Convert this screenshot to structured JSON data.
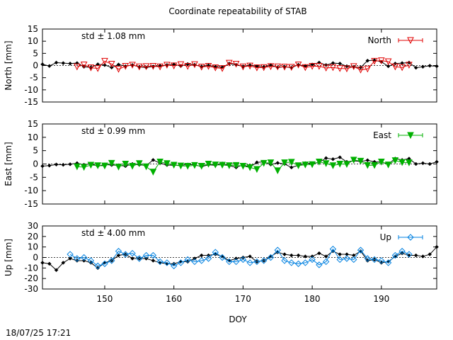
{
  "title": "Coordinate repeatability of STAB",
  "timestamp": "18/07/25 17:21",
  "colors": {
    "north": "#e00000",
    "east": "#00b000",
    "up": "#0080e0",
    "black_series": "#000000"
  },
  "chart_data": {
    "type": "line",
    "x_label": "DOY",
    "xlim": [
      141,
      198
    ],
    "x_ticks": [
      "150",
      "160",
      "170",
      "180",
      "190"
    ],
    "panels": [
      {
        "key": "north",
        "ylabel": "North [mm]",
        "ylim": [
          -15,
          15
        ],
        "y_ticks": [
          "15",
          "10",
          "5",
          "0",
          "-5",
          "-10",
          "-15"
        ],
        "std_label": "std ± 1.08 mm",
        "legend": "North",
        "marker": "triangle-down-open",
        "black_series": {
          "x": [
            141,
            142,
            143,
            144,
            145,
            146,
            147,
            148,
            149,
            150,
            151,
            152,
            153,
            154,
            155,
            156,
            157,
            158,
            159,
            160,
            161,
            162,
            163,
            164,
            165,
            166,
            167,
            168,
            169,
            170,
            171,
            172,
            173,
            174,
            175,
            176,
            177,
            178,
            179,
            180,
            181,
            182,
            183,
            184,
            185,
            186,
            187,
            188,
            189,
            190,
            191,
            192,
            193,
            194,
            195,
            196,
            197,
            198
          ],
          "y": [
            0.5,
            -0.2,
            1.2,
            1.0,
            0.8,
            1.0,
            -0.5,
            -0.8,
            0.5,
            0.2,
            -0.8,
            0.4,
            -0.3,
            0.2,
            -0.6,
            -0.8,
            -0.4,
            -0.1,
            0.2,
            0.5,
            -0.2,
            0.6,
            0.3,
            -0.4,
            0.1,
            -0.5,
            -0.7,
            0.8,
            0.3,
            -0.4,
            0.1,
            -0.3,
            -0.6,
            0.2,
            -0.8,
            -0.5,
            -0.9,
            0.3,
            -0.2,
            0.4,
            1.2,
            0.2,
            1.0,
            0.8,
            -0.3,
            -0.6,
            -0.8,
            2.0,
            2.2,
            1.5,
            -0.3,
            0.8,
            1.0,
            1.2,
            -0.9,
            -0.5,
            -0.1,
            -0.3
          ]
        },
        "colored_series": {
          "x": [
            146,
            147,
            148,
            149,
            150,
            151,
            152,
            153,
            154,
            155,
            156,
            157,
            158,
            159,
            160,
            161,
            162,
            163,
            164,
            165,
            166,
            167,
            168,
            169,
            170,
            171,
            172,
            173,
            174,
            175,
            176,
            177,
            178,
            179,
            180,
            181,
            182,
            183,
            184,
            185,
            186,
            187,
            188,
            189,
            190,
            191,
            192,
            193,
            194
          ],
          "y": [
            -0.5,
            0.3,
            -0.9,
            -1.2,
            1.8,
            0.6,
            -1.5,
            -0.3,
            0.2,
            -0.5,
            -0.4,
            -0.3,
            -0.5,
            0.2,
            -0.1,
            0.4,
            -0.3,
            0.4,
            -0.6,
            -0.3,
            -0.9,
            -1.2,
            1.0,
            0.6,
            -0.5,
            -0.2,
            -0.9,
            -0.8,
            -0.4,
            -0.5,
            -0.6,
            -0.7,
            0.3,
            -0.8,
            -0.3,
            -0.3,
            -1.0,
            -0.8,
            -1.2,
            -1.3,
            -0.4,
            -1.8,
            -1.4,
            1.8,
            2.0,
            1.6,
            -0.5,
            -0.8,
            0.2
          ]
        }
      },
      {
        "key": "east",
        "ylabel": "East [mm]",
        "ylim": [
          -15,
          15
        ],
        "y_ticks": [
          "15",
          "10",
          "5",
          "0",
          "-5",
          "-10",
          "-15"
        ],
        "std_label": "std ± 0.99 mm",
        "legend": "East",
        "marker": "triangle-down-filled",
        "black_series": {
          "x": [
            141,
            142,
            143,
            144,
            145,
            146,
            147,
            148,
            149,
            150,
            151,
            152,
            153,
            154,
            155,
            156,
            157,
            158,
            159,
            160,
            161,
            162,
            163,
            164,
            165,
            166,
            167,
            168,
            169,
            170,
            171,
            172,
            173,
            174,
            175,
            176,
            177,
            178,
            179,
            180,
            181,
            182,
            183,
            184,
            185,
            186,
            187,
            188,
            189,
            190,
            191,
            192,
            193,
            194,
            195,
            196,
            197,
            198
          ],
          "y": [
            -0.8,
            -0.6,
            -0.2,
            -0.3,
            -0.1,
            0.3,
            -0.3,
            0.1,
            -0.8,
            -0.2,
            -0.4,
            -0.5,
            -0.8,
            0.0,
            -0.3,
            -0.6,
            1.5,
            0.3,
            -0.4,
            -0.5,
            -0.5,
            -0.2,
            -0.3,
            -1.0,
            -0.3,
            -0.5,
            0.2,
            -0.6,
            -1.3,
            -0.3,
            -1.2,
            0.6,
            0.8,
            -0.2,
            0.4,
            0.0,
            -1.3,
            -0.5,
            0.3,
            0.2,
            0.6,
            2.2,
            1.8,
            2.5,
            0.8,
            1.2,
            0.9,
            1.4,
            0.8,
            0.7,
            0.0,
            2.0,
            1.5,
            2.0,
            0.0,
            0.3,
            0.0,
            0.8
          ]
        },
        "colored_series": {
          "x": [
            146,
            147,
            148,
            149,
            150,
            151,
            152,
            153,
            154,
            155,
            156,
            157,
            158,
            159,
            160,
            161,
            162,
            163,
            164,
            165,
            166,
            167,
            168,
            169,
            170,
            171,
            172,
            173,
            174,
            175,
            176,
            177,
            178,
            179,
            180,
            181,
            182,
            183,
            184,
            185,
            186,
            187,
            188,
            189,
            190,
            191,
            192,
            193,
            194
          ],
          "y": [
            -1.0,
            -1.2,
            -0.4,
            -0.6,
            -0.7,
            0.3,
            -1.1,
            0.0,
            -0.8,
            0.2,
            -1.0,
            -3.0,
            0.8,
            0.2,
            -0.4,
            -0.7,
            -0.8,
            -0.5,
            -0.8,
            0.0,
            -0.3,
            -0.4,
            -0.6,
            -0.5,
            -0.8,
            -1.3,
            -2.0,
            0.3,
            0.5,
            -2.5,
            0.5,
            0.7,
            -0.6,
            -0.3,
            -0.2,
            0.8,
            0.2,
            -0.6,
            0.0,
            -0.1,
            1.5,
            1.1,
            -0.5,
            -0.5,
            0.8,
            -0.3,
            1.3,
            0.6,
            0.5
          ]
        }
      },
      {
        "key": "up",
        "ylabel": "Up [mm]",
        "ylim": [
          -30,
          30
        ],
        "y_ticks": [
          "30",
          "20",
          "10",
          "0",
          "-10",
          "-20",
          "-30"
        ],
        "std_label": "std ± 4.00 mm",
        "legend": "Up",
        "marker": "diamond-open",
        "black_series": {
          "x": [
            141,
            142,
            143,
            144,
            145,
            146,
            147,
            148,
            149,
            150,
            151,
            152,
            153,
            154,
            155,
            156,
            157,
            158,
            159,
            160,
            161,
            162,
            163,
            164,
            165,
            166,
            167,
            168,
            169,
            170,
            171,
            172,
            173,
            174,
            175,
            176,
            177,
            178,
            179,
            180,
            181,
            182,
            183,
            184,
            185,
            186,
            187,
            188,
            189,
            190,
            191,
            192,
            193,
            194,
            195,
            196,
            197,
            198
          ],
          "y": [
            -5.0,
            -6.0,
            -12.0,
            -5.0,
            -1.0,
            -3.0,
            -3.0,
            -5.0,
            -10.0,
            -5.0,
            -3.0,
            2.0,
            3.0,
            -1.0,
            -1.0,
            -1.0,
            -3.0,
            -5.0,
            -6.0,
            -6.0,
            -4.0,
            -4.0,
            -1.0,
            2.0,
            2.0,
            3.0,
            1.0,
            -3.0,
            -1.0,
            0.0,
            1.0,
            -4.0,
            -3.0,
            1.0,
            5.0,
            3.0,
            2.0,
            2.0,
            1.0,
            1.0,
            4.0,
            1.0,
            6.0,
            3.0,
            3.0,
            2.0,
            6.0,
            -3.0,
            -2.0,
            -5.0,
            -4.0,
            1.0,
            4.0,
            2.0,
            2.0,
            1.0,
            3.0,
            10.0
          ]
        },
        "colored_series": {
          "x": [
            145,
            146,
            147,
            148,
            149,
            150,
            151,
            152,
            153,
            154,
            155,
            156,
            157,
            158,
            159,
            160,
            161,
            162,
            163,
            164,
            165,
            166,
            167,
            168,
            169,
            170,
            171,
            172,
            173,
            174,
            175,
            176,
            177,
            178,
            179,
            180,
            181,
            182,
            183,
            184,
            185,
            186,
            187,
            188,
            189,
            190,
            191,
            192,
            193,
            194
          ],
          "y": [
            3.0,
            -1.0,
            0.0,
            -3.0,
            -8.0,
            -6.0,
            -3.0,
            6.0,
            3.0,
            4.0,
            -1.0,
            2.0,
            2.0,
            -4.0,
            -5.0,
            -8.0,
            -5.0,
            -2.0,
            -4.0,
            -3.0,
            -1.0,
            5.0,
            0.0,
            -4.0,
            -4.0,
            -2.0,
            -5.0,
            -4.0,
            -3.0,
            0.0,
            7.0,
            -3.0,
            -5.0,
            -6.0,
            -5.0,
            -2.0,
            -7.0,
            -4.0,
            8.0,
            -2.0,
            -1.0,
            -2.0,
            7.0,
            -1.0,
            -2.0,
            -3.0,
            -5.0,
            2.0,
            6.0,
            3.0
          ]
        }
      }
    ]
  }
}
